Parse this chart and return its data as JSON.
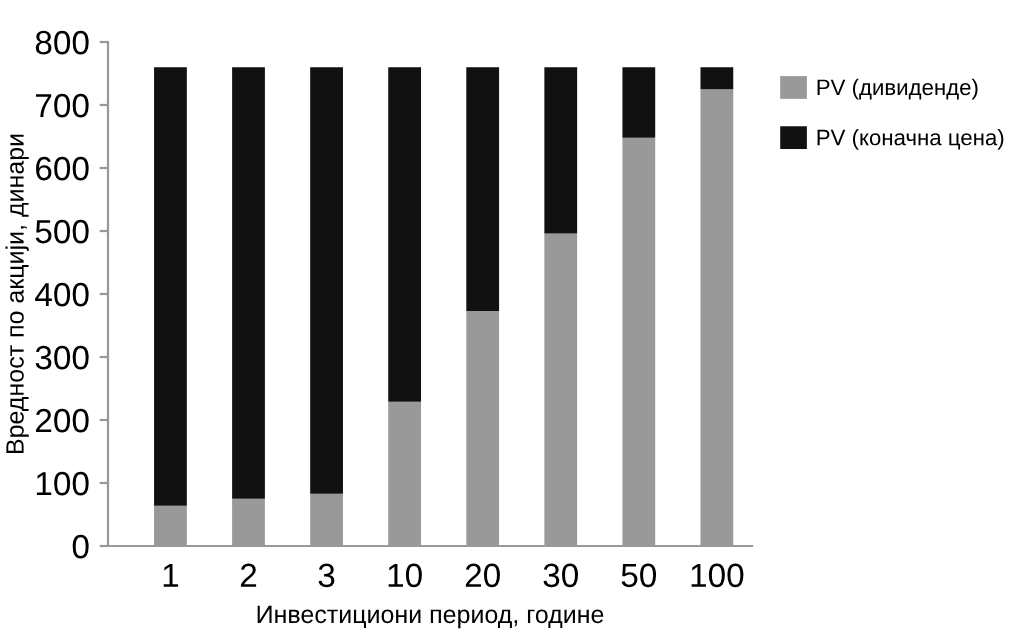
{
  "chart_data": {
    "type": "bar",
    "stacked": true,
    "xlabel": "Инвестициони период, године",
    "ylabel": "Вредност по акцији, динари",
    "categories": [
      "1",
      "2",
      "3",
      "10",
      "20",
      "30",
      "50",
      "100"
    ],
    "series": [
      {
        "name": "PV (дивиденде)",
        "color": "#999999",
        "values": [
          64,
          75,
          83,
          229,
          373,
          496,
          648,
          725
        ]
      },
      {
        "name": "PV (коначна цена)",
        "color": "#111111",
        "values": [
          696,
          685,
          677,
          531,
          387,
          264,
          112,
          35
        ]
      }
    ],
    "ylim": [
      0,
      800
    ],
    "yticks": [
      0,
      100,
      200,
      300,
      400,
      500,
      600,
      700,
      800
    ],
    "grid": false,
    "legend": "right"
  }
}
